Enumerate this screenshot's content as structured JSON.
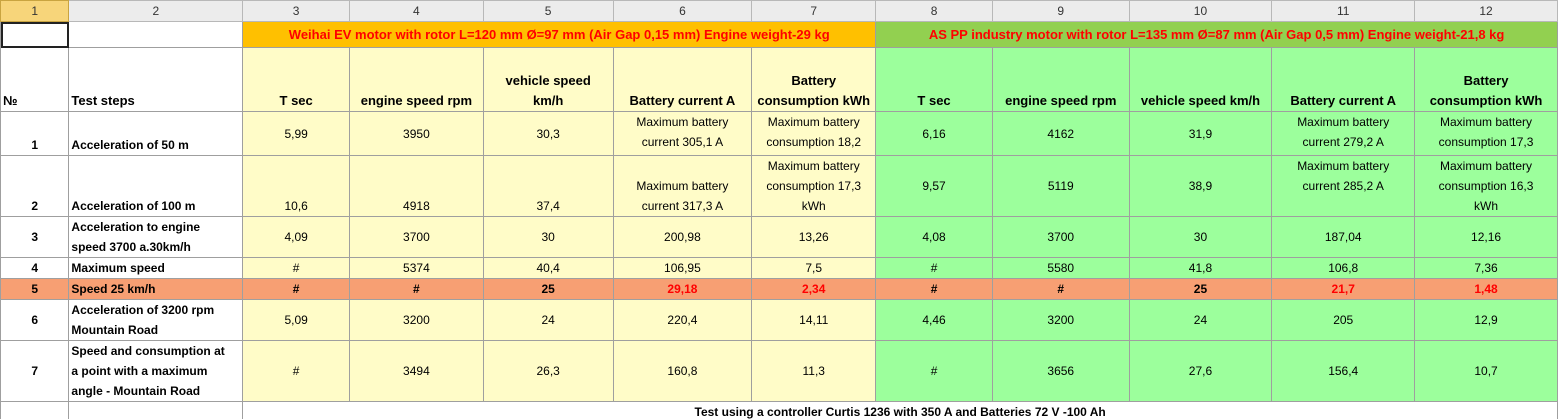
{
  "column_headers": [
    "1",
    "2",
    "3",
    "4",
    "5",
    "6",
    "7",
    "8",
    "9",
    "10",
    "11",
    "12"
  ],
  "group_headers": {
    "weihai": "Weihai EV motor with rotor L=120 mm Ø=97 mm (Air Gap 0,15 mm) Engine weight-29 kg",
    "aspp": "AS PP industry motor with rotor L=135 mm Ø=87 mm (Air Gap 0,5 mm) Engine weight-21,8 kg"
  },
  "headers": {
    "num": "№",
    "steps": "Test steps",
    "t": "T sec",
    "rpm": "engine speed rpm",
    "speed_line1": "vehicle speed",
    "speed_line2": "km/h",
    "speed_one": "vehicle speed km/h",
    "current": "Battery current A",
    "cons_line1": "Battery",
    "cons_line2": "consumption kWh",
    "t2": "T sec",
    "rpm2": "engine speed rpm",
    "current2": "Battery current A",
    "cons2_line1": "Battery",
    "cons2_line2": "consumption kWh"
  },
  "rows": [
    {
      "num": "1",
      "step": [
        "Acceleration of 50 m"
      ],
      "w": {
        "t": "5,99",
        "rpm": "3950",
        "speed": "30,3",
        "current": [
          "Maximum battery",
          "current 305,1 A"
        ],
        "cons": [
          "Maximum battery",
          "consumption 18,2"
        ]
      },
      "a": {
        "t": "6,16",
        "rpm": "4162",
        "speed": "31,9",
        "current": [
          "Maximum battery",
          "current 279,2 A"
        ],
        "cons": [
          "Maximum battery",
          "consumption 17,3"
        ]
      }
    },
    {
      "num": "2",
      "step": [
        "Acceleration of 100 m"
      ],
      "w": {
        "t": "10,6",
        "rpm": "4918",
        "speed": "37,4",
        "current": [
          "Maximum battery",
          "current 317,3 A"
        ],
        "cons": [
          "Maximum battery",
          "consumption 17,3",
          "kWh"
        ]
      },
      "a": {
        "t": "9,57",
        "rpm": "5119",
        "speed": "38,9",
        "current": [
          "Maximum battery",
          "current 285,2 A"
        ],
        "cons": [
          "Maximum battery",
          "consumption 16,3",
          "kWh"
        ]
      }
    },
    {
      "num": "3",
      "step": [
        "Acceleration to engine",
        "speed 3700 a.30km/h"
      ],
      "w": {
        "t": "4,09",
        "rpm": "3700",
        "speed": "30",
        "current": [
          "200,98"
        ],
        "cons": [
          "13,26"
        ]
      },
      "a": {
        "t": "4,08",
        "rpm": "3700",
        "speed": "30",
        "current": [
          "187,04"
        ],
        "cons": [
          "12,16"
        ]
      }
    },
    {
      "num": "4",
      "step": [
        "Maximum speed"
      ],
      "w": {
        "t": "#",
        "rpm": "5374",
        "speed": "40,4",
        "current": [
          "106,95"
        ],
        "cons": [
          "7,5"
        ]
      },
      "a": {
        "t": "#",
        "rpm": "5580",
        "speed": "41,8",
        "current": [
          "106,8"
        ],
        "cons": [
          "7,36"
        ]
      }
    },
    {
      "num": "5",
      "step": [
        "Speed 25 km/h"
      ],
      "w": {
        "t": "#",
        "rpm": "#",
        "speed": "25",
        "current": [
          "29,18"
        ],
        "cons": [
          "2,34"
        ]
      },
      "a": {
        "t": "#",
        "rpm": "#",
        "speed": "25",
        "current": [
          "21,7"
        ],
        "cons": [
          "1,48"
        ]
      }
    },
    {
      "num": "6",
      "step": [
        "Acceleration of 3200 rpm",
        "Mountain Road"
      ],
      "w": {
        "t": "5,09",
        "rpm": "3200",
        "speed": "24",
        "current": [
          "220,4"
        ],
        "cons": [
          "14,11"
        ]
      },
      "a": {
        "t": "4,46",
        "rpm": "3200",
        "speed": "24",
        "current": [
          "205"
        ],
        "cons": [
          "12,9"
        ]
      }
    },
    {
      "num": "7",
      "step": [
        "Speed and consumption at",
        "a point with a maximum",
        "angle - Mountain Road"
      ],
      "w": {
        "t": "#",
        "rpm": "3494",
        "speed": "26,3",
        "current": [
          "160,8"
        ],
        "cons": [
          "11,3"
        ]
      },
      "a": {
        "t": "#",
        "rpm": "3656",
        "speed": "27,6",
        "current": [
          "156,4"
        ],
        "cons": [
          "10,7"
        ]
      }
    }
  ],
  "footer": "Test using a controller Curtis 1236 with 350 A and Batteries 72 V -100 Ah"
}
